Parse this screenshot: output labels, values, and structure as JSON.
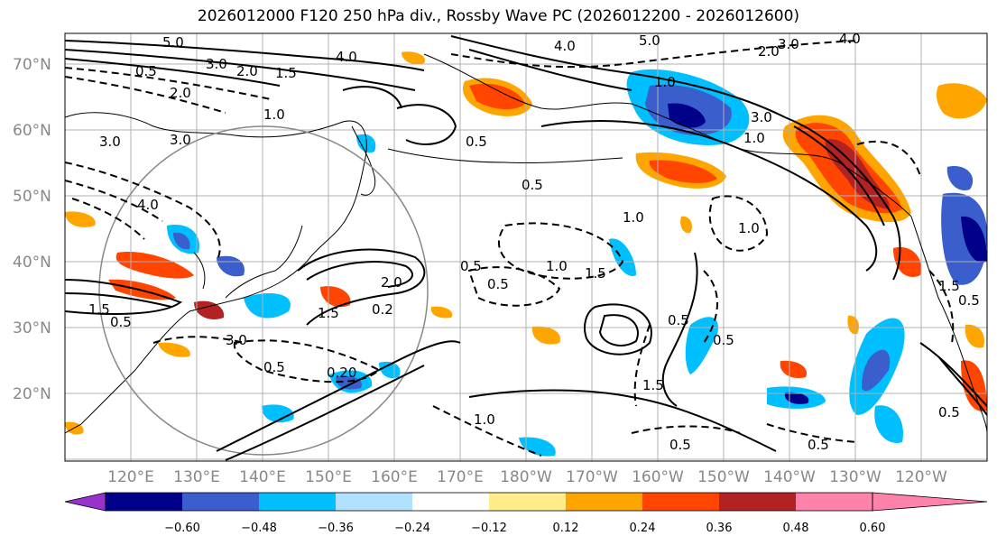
{
  "title": "2026012000 F120 250 hPa div., Rossby Wave PC (2026012200 - 2026012600)",
  "map": {
    "lat_labels": [
      "70°N",
      "60°N",
      "50°N",
      "40°N",
      "30°N",
      "20°N"
    ],
    "lon_labels": [
      "120°E",
      "130°E",
      "140°E",
      "150°E",
      "160°E",
      "170°E",
      "180°W",
      "170°W",
      "160°W",
      "150°W",
      "140°W",
      "130°W",
      "120°W"
    ],
    "contour_labels": [
      "5.0",
      "3.0",
      "2.0",
      "1.5",
      "4.0",
      "0.5",
      "2.0",
      "1.0",
      "3.0",
      "3.0",
      "5.0",
      "4.0",
      "2.0",
      "3.0",
      "4.0",
      "1.0",
      "3.0",
      "0.5",
      "0.5",
      "1.0",
      "1.5",
      "1.0",
      "4.0",
      "1.5",
      "0.5",
      "1.0",
      "0.5",
      "1.5",
      "0.5",
      "0.2",
      "2.0",
      "0.5",
      "0.5",
      "1.5",
      "0.5",
      "1.0",
      "3.0",
      "0.5",
      "0.5",
      "0.20",
      "1.0",
      "0.5",
      "1.5",
      "0.5"
    ]
  },
  "colorbar": {
    "colors": [
      "#9932cc",
      "#00008b",
      "#3a5fcd",
      "#00bfff",
      "#b0e2ff",
      "#ffffff",
      "#ffec8b",
      "#ffa500",
      "#ff4500",
      "#b22222",
      "#ff82ab"
    ],
    "tick_labels": [
      "−0.60",
      "−0.48",
      "−0.36",
      "−0.24",
      "−0.12",
      "0.12",
      "0.24",
      "0.36",
      "0.48",
      "0.60"
    ]
  }
}
